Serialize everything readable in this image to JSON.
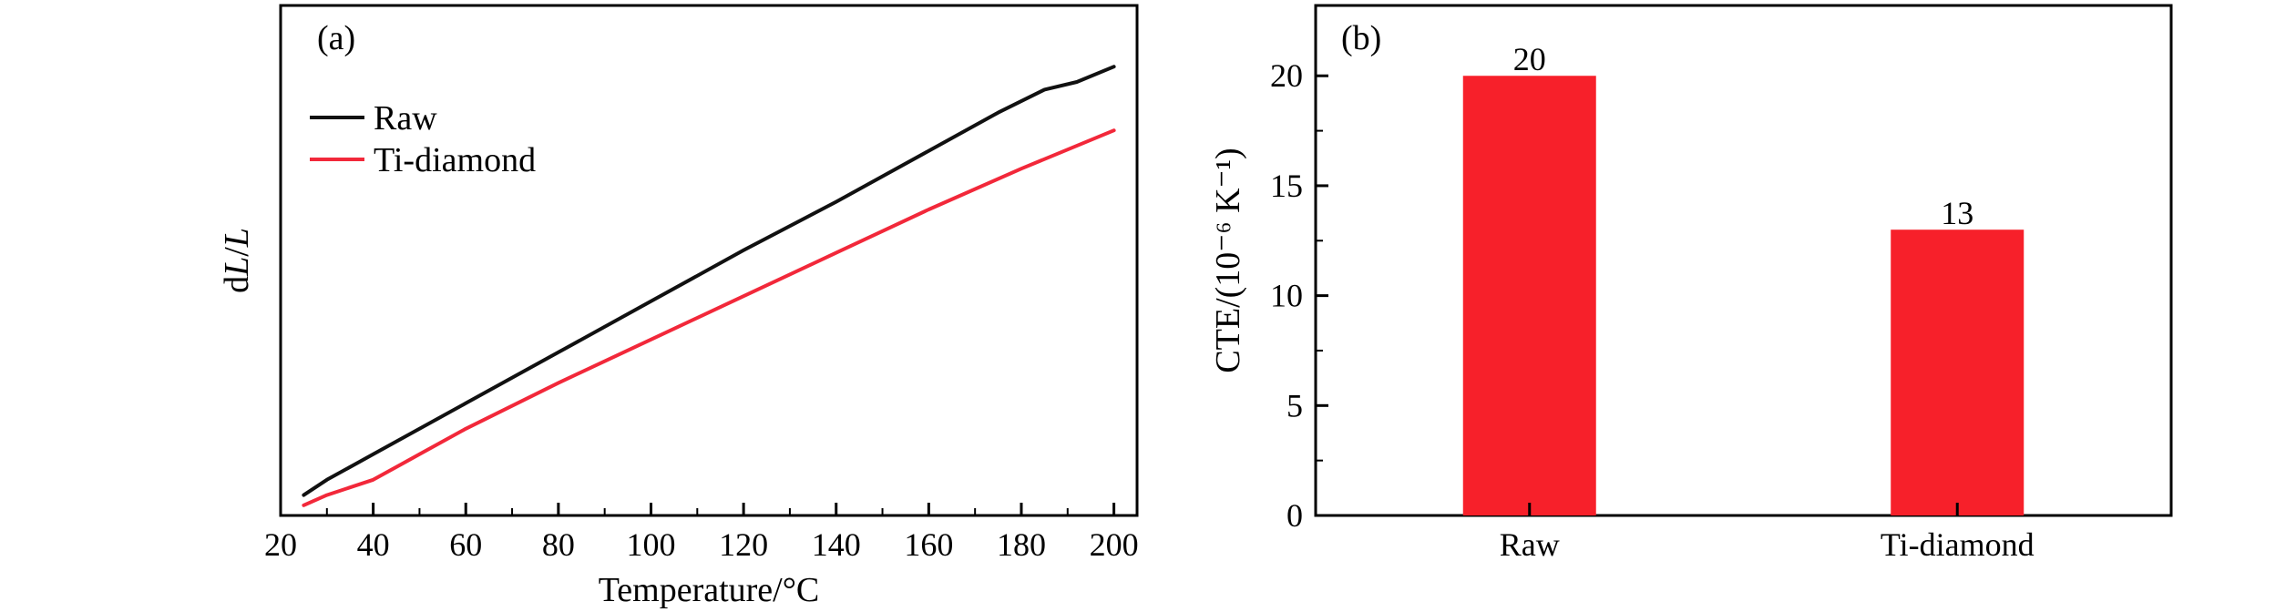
{
  "colors": {
    "raw": "#111111",
    "ti": "#f2283a",
    "bar": "#f7202a",
    "axis": "#000000"
  },
  "chart_data": [
    {
      "type": "line",
      "panel_label": "(a)",
      "xlabel": "Temperature/°C",
      "ylabel_prefix": "d",
      "ylabel_italic1": "L",
      "ylabel_sep": "/",
      "ylabel_italic2": "L",
      "xlim": [
        20,
        205
      ],
      "ylim": [
        0,
        1
      ],
      "x_ticks": [
        20,
        40,
        60,
        80,
        100,
        120,
        140,
        160,
        180,
        200
      ],
      "y_ticks_shown": false,
      "legend": {
        "placement": "top-left",
        "entries": [
          "Raw",
          "Ti-diamond"
        ]
      },
      "series": [
        {
          "name": "Raw",
          "color": "#111111",
          "points": [
            [
              25,
              0.04
            ],
            [
              30,
              0.07
            ],
            [
              40,
              0.12
            ],
            [
              60,
              0.22
            ],
            [
              80,
              0.32
            ],
            [
              100,
              0.42
            ],
            [
              120,
              0.52
            ],
            [
              140,
              0.615
            ],
            [
              160,
              0.715
            ],
            [
              175,
              0.79
            ],
            [
              185,
              0.835
            ],
            [
              192,
              0.85
            ],
            [
              200,
              0.88
            ]
          ]
        },
        {
          "name": "Ti-diamond",
          "color": "#f2283a",
          "points": [
            [
              25,
              0.02
            ],
            [
              30,
              0.04
            ],
            [
              40,
              0.07
            ],
            [
              50,
              0.12
            ],
            [
              60,
              0.17
            ],
            [
              80,
              0.26
            ],
            [
              100,
              0.345
            ],
            [
              120,
              0.43
            ],
            [
              140,
              0.515
            ],
            [
              160,
              0.6
            ],
            [
              180,
              0.68
            ],
            [
              200,
              0.755
            ]
          ]
        }
      ]
    },
    {
      "type": "bar",
      "panel_label": "(b)",
      "categories": [
        "Raw",
        "Ti-diamond"
      ],
      "values": [
        20,
        13
      ],
      "data_labels": [
        "20",
        "13"
      ],
      "ylabel": "CTE/(10⁻⁶ K⁻¹)",
      "xlabel": "",
      "ylim": [
        0,
        23.2
      ],
      "y_ticks": [
        0,
        5,
        10,
        15,
        20
      ]
    }
  ]
}
